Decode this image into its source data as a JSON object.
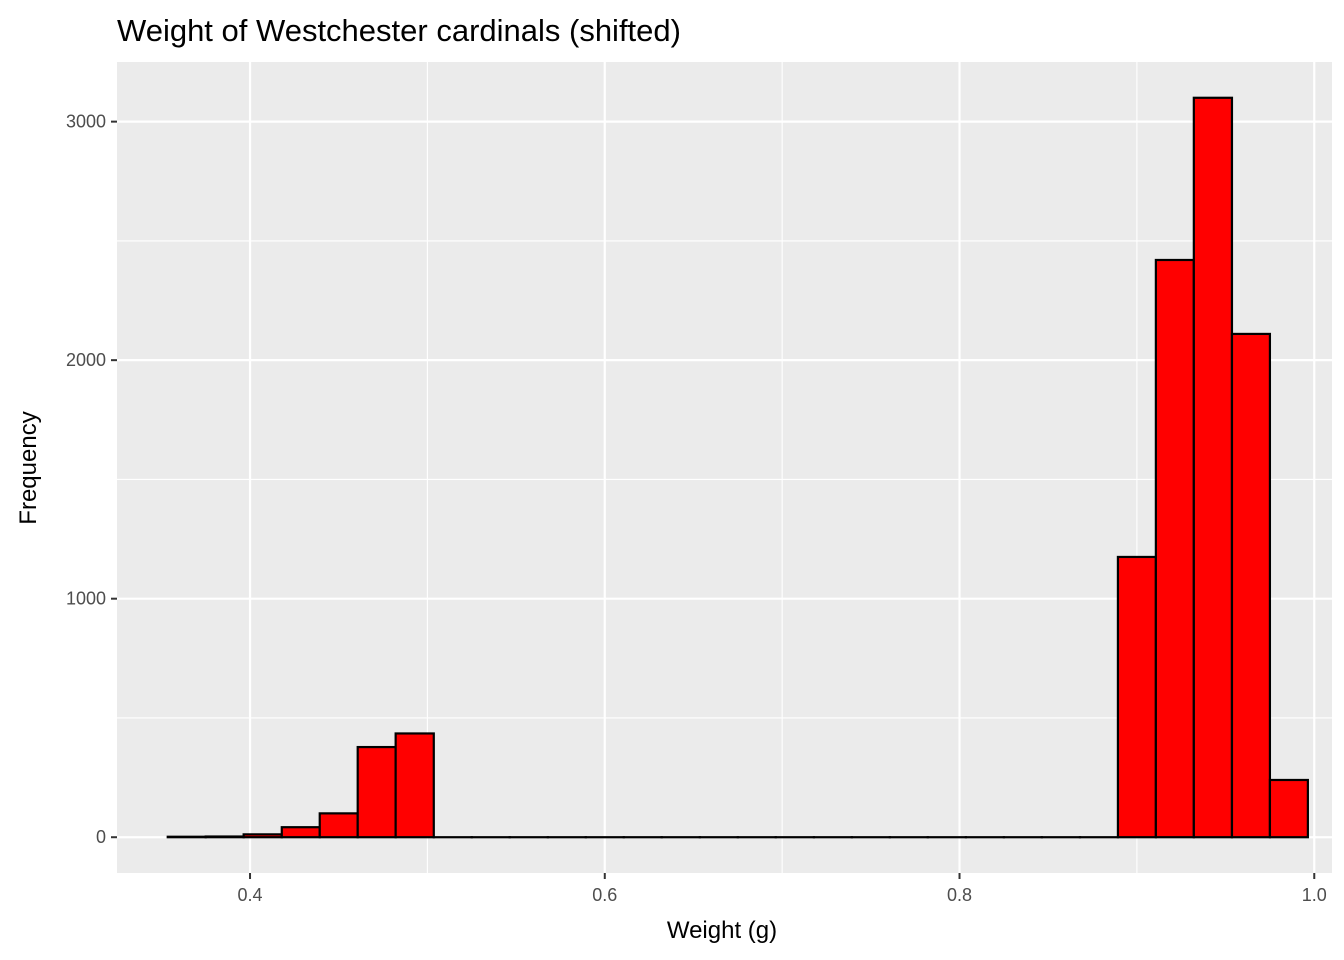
{
  "chart_data": {
    "type": "histogram",
    "title": "Weight of Westchester cardinals (shifted)",
    "xlabel": "Weight (g)",
    "ylabel": "Frequency",
    "xlim": [
      0.325,
      1.01
    ],
    "ylim": [
      -150,
      3250
    ],
    "x_ticks": [
      0.4,
      0.6,
      0.8,
      1.0
    ],
    "x_tick_labels": [
      "0.4",
      "0.6",
      "0.8",
      "1.0"
    ],
    "y_ticks": [
      0,
      1000,
      2000,
      3000
    ],
    "y_tick_labels": [
      "0",
      "1000",
      "2000",
      "3000"
    ],
    "bin_width": 0.02143,
    "bins": [
      {
        "x0": 0.3536,
        "x1": 0.375,
        "count": 2
      },
      {
        "x0": 0.375,
        "x1": 0.3964,
        "count": 3
      },
      {
        "x0": 0.3964,
        "x1": 0.4179,
        "count": 12
      },
      {
        "x0": 0.4179,
        "x1": 0.4393,
        "count": 42
      },
      {
        "x0": 0.4393,
        "x1": 0.4607,
        "count": 100
      },
      {
        "x0": 0.4607,
        "x1": 0.4821,
        "count": 378
      },
      {
        "x0": 0.4821,
        "x1": 0.5036,
        "count": 435
      },
      {
        "x0": 0.5036,
        "x1": 0.525,
        "count": 0
      },
      {
        "x0": 0.525,
        "x1": 0.5464,
        "count": 0
      },
      {
        "x0": 0.5464,
        "x1": 0.5679,
        "count": 0
      },
      {
        "x0": 0.5679,
        "x1": 0.5893,
        "count": 0
      },
      {
        "x0": 0.5893,
        "x1": 0.6107,
        "count": 0
      },
      {
        "x0": 0.6107,
        "x1": 0.6321,
        "count": 0
      },
      {
        "x0": 0.6321,
        "x1": 0.6536,
        "count": 0
      },
      {
        "x0": 0.6536,
        "x1": 0.675,
        "count": 0
      },
      {
        "x0": 0.675,
        "x1": 0.6964,
        "count": 0
      },
      {
        "x0": 0.6964,
        "x1": 0.7179,
        "count": 0
      },
      {
        "x0": 0.7179,
        "x1": 0.7393,
        "count": 0
      },
      {
        "x0": 0.7393,
        "x1": 0.7607,
        "count": 0
      },
      {
        "x0": 0.7607,
        "x1": 0.7821,
        "count": 0
      },
      {
        "x0": 0.7821,
        "x1": 0.8036,
        "count": 0
      },
      {
        "x0": 0.8036,
        "x1": 0.825,
        "count": 0
      },
      {
        "x0": 0.825,
        "x1": 0.8464,
        "count": 0
      },
      {
        "x0": 0.8464,
        "x1": 0.8679,
        "count": 0
      },
      {
        "x0": 0.8679,
        "x1": 0.8893,
        "count": 0
      },
      {
        "x0": 0.8893,
        "x1": 0.9107,
        "count": 1175
      },
      {
        "x0": 0.9107,
        "x1": 0.9321,
        "count": 2420
      },
      {
        "x0": 0.9321,
        "x1": 0.9536,
        "count": 3100
      },
      {
        "x0": 0.9536,
        "x1": 0.975,
        "count": 2110
      },
      {
        "x0": 0.975,
        "x1": 0.9964,
        "count": 240
      }
    ],
    "bar_fill": "#ff0000",
    "bar_stroke": "#000000",
    "panel_background": "#ebebeb",
    "grid": true,
    "grid_color": "#ffffff"
  }
}
